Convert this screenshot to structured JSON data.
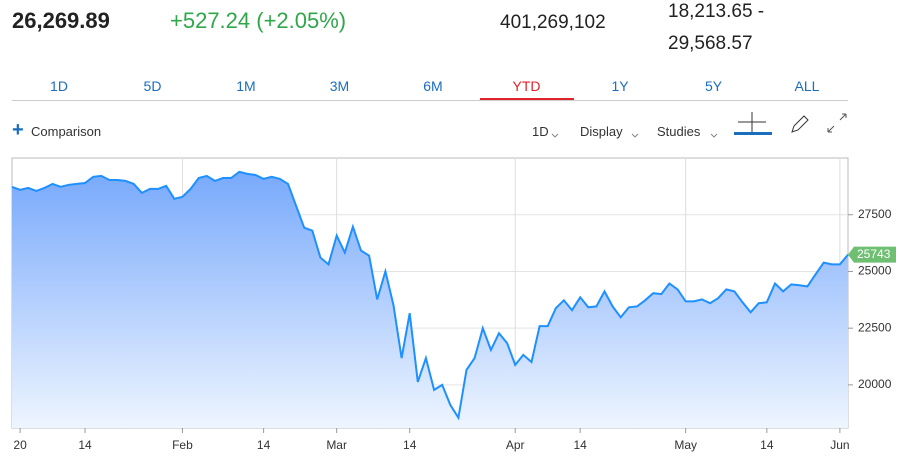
{
  "header": {
    "price": "26,269.89",
    "change": "+527.24 (+2.05%)",
    "volume": "401,269,102",
    "range": "18,213.65 - 29,568.57"
  },
  "tabs": [
    "1D",
    "5D",
    "1M",
    "3M",
    "6M",
    "YTD",
    "1Y",
    "5Y",
    "ALL"
  ],
  "active_tab": "YTD",
  "toolbar": {
    "comparison": "Comparison",
    "interval": "1D",
    "display": "Display",
    "studies": "Studies"
  },
  "chart_data": {
    "type": "line",
    "color": "#1e90ff",
    "area": true,
    "categories": [
      null,
      "20",
      null,
      null,
      null,
      null,
      null,
      null,
      null,
      "14",
      null,
      null,
      null,
      null,
      null,
      null,
      null,
      null,
      null,
      null,
      null,
      "Feb",
      null,
      null,
      null,
      null,
      null,
      null,
      null,
      null,
      null,
      "14",
      null,
      null,
      null,
      null,
      null,
      null,
      null,
      null,
      "Mar",
      null,
      null,
      null,
      null,
      null,
      null,
      null,
      null,
      "14",
      null,
      null,
      null,
      null,
      null,
      null,
      null,
      null,
      null,
      null,
      null,
      null,
      "Apr",
      null,
      null,
      null,
      null,
      null,
      null,
      null,
      "14",
      null,
      null,
      null,
      null,
      null,
      null,
      null,
      null,
      null,
      null,
      null,
      null,
      "May",
      null,
      null,
      null,
      null,
      null,
      null,
      null,
      null,
      null,
      "14",
      null,
      null,
      null,
      null,
      null,
      null,
      null,
      null,
      "Jun",
      null
    ],
    "values": [
      28728,
      28600,
      28680,
      28550,
      28680,
      28860,
      28730,
      28820,
      28860,
      28900,
      29170,
      29210,
      29030,
      29030,
      28990,
      28860,
      28460,
      28640,
      28640,
      28770,
      28200,
      28290,
      28640,
      29120,
      29210,
      28990,
      29120,
      29120,
      29390,
      29300,
      29250,
      29080,
      29170,
      29080,
      28860,
      27890,
      26930,
      26800,
      25610,
      25310,
      26580,
      25830,
      26970,
      25920,
      25700,
      23770,
      25000,
      23510,
      21180,
      23160,
      20130,
      21180,
      19780,
      20000,
      19120,
      18550,
      20660,
      21180,
      22500,
      21540,
      22280,
      21840,
      20880,
      21320,
      21010,
      22590,
      22590,
      23380,
      23730,
      23290,
      23860,
      23420,
      23460,
      24120,
      23460,
      22980,
      23420,
      23460,
      23730,
      24040,
      24000,
      24470,
      24210,
      23680,
      23680,
      23770,
      23600,
      23820,
      24210,
      24120,
      23640,
      23200,
      23600,
      23640,
      24470,
      24120,
      24430,
      24390,
      24340,
      24870,
      25390,
      25310,
      25310,
      25743
    ],
    "ylim": [
      18100,
      30000
    ],
    "yticks": [
      20000,
      22500,
      25000,
      27500
    ],
    "grid": true
  }
}
